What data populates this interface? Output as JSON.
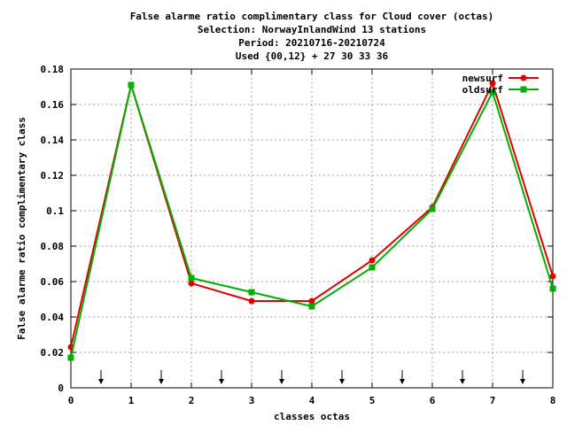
{
  "chart_data": {
    "type": "line",
    "title_lines": [
      "False alarme ratio complimentary class  for Cloud cover (octas)",
      "Selection: NorwayInlandWind     13 stations",
      "Period: 20210716-20210724",
      "Used {00,12} + 27 30 33 36"
    ],
    "xlabel": "classes octas",
    "ylabel": "False alarme ratio complimentary class",
    "xlim": [
      0,
      8
    ],
    "ylim": [
      0,
      0.18
    ],
    "x_ticks": [
      "0",
      "1",
      "2",
      "3",
      "4",
      "5",
      "6",
      "7",
      "8"
    ],
    "y_ticks": [
      "0",
      "0.02",
      "0.04",
      "0.06",
      "0.08",
      "0.1",
      "0.12",
      "0.14",
      "0.16",
      "0.18"
    ],
    "grid": true,
    "legend_position": "top-right",
    "x": [
      0,
      1,
      2,
      3,
      4,
      5,
      6,
      7,
      8
    ],
    "series": [
      {
        "name": "newsurf",
        "color": "#e00000",
        "marker": "circle",
        "values": [
          0.023,
          0.171,
          0.059,
          0.049,
          0.049,
          0.072,
          0.102,
          0.172,
          0.063
        ]
      },
      {
        "name": "oldsurf",
        "color": "#00b000",
        "marker": "square",
        "values": [
          0.017,
          0.171,
          0.062,
          0.054,
          0.046,
          0.068,
          0.101,
          0.167,
          0.056
        ]
      }
    ],
    "arrow_markers_x": [
      0.5,
      1.5,
      2.5,
      3.5,
      4.5,
      5.5,
      6.5,
      7.5
    ]
  }
}
